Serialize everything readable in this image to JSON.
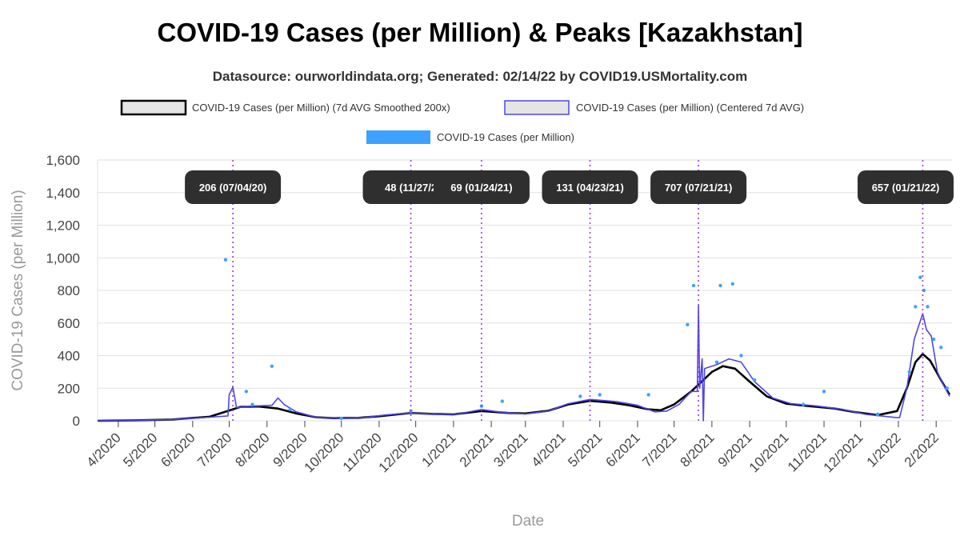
{
  "chart_data": {
    "type": "line",
    "title": "COVID-19 Cases (per Million) & Peaks [Kazakhstan]",
    "subtitle": "Datasource: ourworldindata.org; Generated: 02/14/22 by COVID19.USMortality.com",
    "xlabel": "Date",
    "ylabel": "COVID-19 Cases (per Million)",
    "ylim": [
      0,
      1600
    ],
    "yticks": [
      0,
      200,
      400,
      600,
      800,
      1000,
      1200,
      1400,
      1600
    ],
    "ytick_labels": [
      "0",
      "200",
      "400",
      "600",
      "800",
      "1,000",
      "1,200",
      "1,400",
      "1,600"
    ],
    "xlim": [
      "2020-03-15",
      "2022-02-14"
    ],
    "xticks": [
      {
        "date": "2020-04-01",
        "label": "4/2020"
      },
      {
        "date": "2020-05-01",
        "label": "5/2020"
      },
      {
        "date": "2020-06-01",
        "label": "6/2020"
      },
      {
        "date": "2020-07-01",
        "label": "7/2020"
      },
      {
        "date": "2020-08-01",
        "label": "8/2020"
      },
      {
        "date": "2020-09-01",
        "label": "9/2020"
      },
      {
        "date": "2020-10-01",
        "label": "10/2020"
      },
      {
        "date": "2020-11-01",
        "label": "11/2020"
      },
      {
        "date": "2020-12-01",
        "label": "12/2020"
      },
      {
        "date": "2021-01-01",
        "label": "1/2021"
      },
      {
        "date": "2021-02-01",
        "label": "2/2021"
      },
      {
        "date": "2021-03-01",
        "label": "3/2021"
      },
      {
        "date": "2021-04-01",
        "label": "4/2021"
      },
      {
        "date": "2021-05-01",
        "label": "5/2021"
      },
      {
        "date": "2021-06-01",
        "label": "6/2021"
      },
      {
        "date": "2021-07-01",
        "label": "7/2021"
      },
      {
        "date": "2021-08-01",
        "label": "8/2021"
      },
      {
        "date": "2021-09-01",
        "label": "9/2021"
      },
      {
        "date": "2021-10-01",
        "label": "10/2021"
      },
      {
        "date": "2021-11-01",
        "label": "11/2021"
      },
      {
        "date": "2021-12-01",
        "label": "12/2021"
      },
      {
        "date": "2022-01-01",
        "label": "1/2022"
      },
      {
        "date": "2022-02-01",
        "label": "2/2022"
      }
    ],
    "grid": true,
    "legend_position": "top",
    "series": [
      {
        "name": "COVID-19 Cases (per Million) (7d AVG Smoothed 200x)",
        "kind": "line",
        "color": "#000000",
        "points": [
          [
            "2020-03-15",
            0
          ],
          [
            "2020-04-15",
            3
          ],
          [
            "2020-05-15",
            8
          ],
          [
            "2020-06-15",
            25
          ],
          [
            "2020-07-10",
            85
          ],
          [
            "2020-07-25",
            88
          ],
          [
            "2020-08-10",
            75
          ],
          [
            "2020-08-25",
            45
          ],
          [
            "2020-09-10",
            22
          ],
          [
            "2020-09-25",
            16
          ],
          [
            "2020-10-15",
            18
          ],
          [
            "2020-11-01",
            28
          ],
          [
            "2020-11-27",
            48
          ],
          [
            "2020-12-15",
            42
          ],
          [
            "2021-01-01",
            40
          ],
          [
            "2021-01-24",
            60
          ],
          [
            "2021-02-15",
            48
          ],
          [
            "2021-03-01",
            45
          ],
          [
            "2021-03-20",
            62
          ],
          [
            "2021-04-05",
            100
          ],
          [
            "2021-04-23",
            122
          ],
          [
            "2021-05-10",
            112
          ],
          [
            "2021-05-25",
            95
          ],
          [
            "2021-06-10",
            70
          ],
          [
            "2021-06-20",
            65
          ],
          [
            "2021-07-01",
            100
          ],
          [
            "2021-07-15",
            180
          ],
          [
            "2021-08-01",
            300
          ],
          [
            "2021-08-10",
            335
          ],
          [
            "2021-08-20",
            320
          ],
          [
            "2021-09-01",
            240
          ],
          [
            "2021-09-15",
            150
          ],
          [
            "2021-10-01",
            105
          ],
          [
            "2021-10-20",
            90
          ],
          [
            "2021-11-10",
            75
          ],
          [
            "2021-11-25",
            55
          ],
          [
            "2021-12-15",
            35
          ],
          [
            "2021-12-31",
            60
          ],
          [
            "2022-01-08",
            200
          ],
          [
            "2022-01-15",
            360
          ],
          [
            "2022-01-21",
            410
          ],
          [
            "2022-01-27",
            370
          ],
          [
            "2022-02-05",
            250
          ],
          [
            "2022-02-12",
            160
          ]
        ]
      },
      {
        "name": "COVID-19 Cases (per Million) (Centered 7d AVG)",
        "kind": "line",
        "color": "#4f46e5",
        "points": [
          [
            "2020-03-15",
            0
          ],
          [
            "2020-04-15",
            3
          ],
          [
            "2020-05-15",
            8
          ],
          [
            "2020-06-15",
            22
          ],
          [
            "2020-06-30",
            30
          ],
          [
            "2020-07-01",
            160
          ],
          [
            "2020-07-04",
            206
          ],
          [
            "2020-07-07",
            80
          ],
          [
            "2020-07-20",
            90
          ],
          [
            "2020-08-05",
            95
          ],
          [
            "2020-08-10",
            140
          ],
          [
            "2020-08-15",
            100
          ],
          [
            "2020-08-25",
            55
          ],
          [
            "2020-09-10",
            22
          ],
          [
            "2020-10-01",
            15
          ],
          [
            "2020-10-20",
            20
          ],
          [
            "2020-11-05",
            35
          ],
          [
            "2020-11-27",
            48
          ],
          [
            "2020-12-20",
            40
          ],
          [
            "2021-01-05",
            42
          ],
          [
            "2021-01-24",
            69
          ],
          [
            "2021-02-10",
            52
          ],
          [
            "2021-03-01",
            42
          ],
          [
            "2021-03-20",
            60
          ],
          [
            "2021-04-05",
            105
          ],
          [
            "2021-04-23",
            131
          ],
          [
            "2021-05-15",
            118
          ],
          [
            "2021-06-01",
            95
          ],
          [
            "2021-06-15",
            55
          ],
          [
            "2021-06-25",
            60
          ],
          [
            "2021-07-05",
            100
          ],
          [
            "2021-07-15",
            180
          ],
          [
            "2021-07-20",
            180
          ],
          [
            "2021-07-21",
            707
          ],
          [
            "2021-07-22",
            200
          ],
          [
            "2021-07-24",
            380
          ],
          [
            "2021-07-25",
            0
          ],
          [
            "2021-07-26",
            320
          ],
          [
            "2021-08-05",
            345
          ],
          [
            "2021-08-15",
            380
          ],
          [
            "2021-08-25",
            360
          ],
          [
            "2021-09-05",
            240
          ],
          [
            "2021-09-20",
            140
          ],
          [
            "2021-10-05",
            105
          ],
          [
            "2021-10-25",
            92
          ],
          [
            "2021-11-15",
            72
          ],
          [
            "2021-12-05",
            40
          ],
          [
            "2021-12-20",
            28
          ],
          [
            "2021-12-30",
            20
          ],
          [
            "2022-01-02",
            20
          ],
          [
            "2022-01-08",
            200
          ],
          [
            "2022-01-14",
            500
          ],
          [
            "2022-01-21",
            657
          ],
          [
            "2022-01-24",
            560
          ],
          [
            "2022-01-28",
            520
          ],
          [
            "2022-02-02",
            300
          ],
          [
            "2022-02-07",
            220
          ],
          [
            "2022-02-12",
            150
          ]
        ]
      },
      {
        "name": "COVID-19 Cases (per Million)",
        "kind": "scatter",
        "color": "#3ea1ff",
        "points": [
          [
            "2020-06-28",
            988
          ],
          [
            "2020-07-15",
            180
          ],
          [
            "2020-07-20",
            100
          ],
          [
            "2020-08-05",
            335
          ],
          [
            "2020-08-20",
            70
          ],
          [
            "2020-10-01",
            15
          ],
          [
            "2020-11-27",
            60
          ],
          [
            "2021-01-24",
            90
          ],
          [
            "2021-02-10",
            120
          ],
          [
            "2021-04-15",
            150
          ],
          [
            "2021-05-01",
            160
          ],
          [
            "2021-06-10",
            160
          ],
          [
            "2021-07-17",
            830
          ],
          [
            "2021-07-12",
            590
          ],
          [
            "2021-08-05",
            360
          ],
          [
            "2021-08-08",
            830
          ],
          [
            "2021-08-18",
            840
          ],
          [
            "2021-08-25",
            400
          ],
          [
            "2021-09-05",
            250
          ],
          [
            "2021-10-15",
            100
          ],
          [
            "2021-11-01",
            180
          ],
          [
            "2021-12-15",
            40
          ],
          [
            "2022-01-10",
            300
          ],
          [
            "2022-01-15",
            700
          ],
          [
            "2022-01-19",
            880
          ],
          [
            "2022-01-22",
            800
          ],
          [
            "2022-01-25",
            700
          ],
          [
            "2022-01-30",
            500
          ],
          [
            "2022-02-05",
            450
          ],
          [
            "2022-02-10",
            200
          ]
        ]
      }
    ],
    "peaks": [
      {
        "date": "2020-07-04",
        "label": "206 (07/04/20)"
      },
      {
        "date": "2020-11-27",
        "label": "48 (11/27/2"
      },
      {
        "date": "2021-01-24",
        "label": "69 (01/24/21)"
      },
      {
        "date": "2021-04-23",
        "label": "131 (04/23/21)"
      },
      {
        "date": "2021-07-21",
        "label": "707 (07/21/21)"
      },
      {
        "date": "2022-01-21",
        "label": "657 (01/21/22)"
      }
    ]
  }
}
